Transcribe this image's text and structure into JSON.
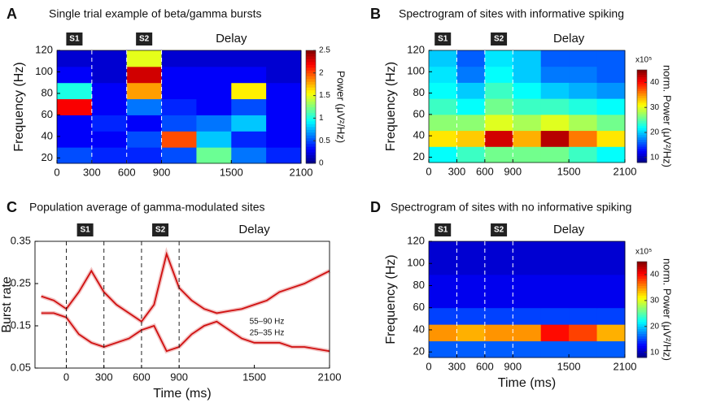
{
  "chart_data": [
    {
      "type": "heatmap",
      "panel_label": "A",
      "title": "Single trial example of beta/gamma bursts",
      "ylabel": "Frequency (Hz)",
      "x_bins": [
        0,
        300,
        600,
        900,
        1200,
        1500,
        1800,
        2100
      ],
      "y_bins": [
        15,
        30,
        45,
        60,
        75,
        90,
        105,
        120
      ],
      "values": [
        [
          0.5,
          0.4,
          0.4,
          0.5,
          1.2,
          0.6,
          0.4
        ],
        [
          0.3,
          0.3,
          0.5,
          2.0,
          0.8,
          0.4,
          0.3
        ],
        [
          0.3,
          0.4,
          0.3,
          0.5,
          0.6,
          0.8,
          0.3
        ],
        [
          2.2,
          0.3,
          0.6,
          0.4,
          0.3,
          0.5,
          0.3
        ],
        [
          1.0,
          0.3,
          1.8,
          0.3,
          0.3,
          1.6,
          0.3
        ],
        [
          0.3,
          0.2,
          2.3,
          0.3,
          0.3,
          0.3,
          0.2
        ],
        [
          0.2,
          0.2,
          1.5,
          0.2,
          0.2,
          0.2,
          0.2
        ]
      ],
      "xlim": [
        0,
        2100
      ],
      "xticks": [
        0,
        300,
        600,
        900,
        1500,
        2100
      ],
      "ylim": [
        15,
        120
      ],
      "yticks": [
        20,
        40,
        60,
        80,
        100,
        120
      ],
      "clim": [
        0,
        2.5
      ],
      "cticks": [
        0,
        0.5,
        1,
        1.5,
        2,
        2.5
      ],
      "colorbar_label": "Power (μV²/Hz)",
      "events": [
        300,
        600,
        900
      ],
      "epochs": [
        {
          "label": "S1",
          "start": 0,
          "end": 300,
          "badge": true
        },
        {
          "label": "S2",
          "start": 600,
          "end": 900,
          "badge": true
        },
        {
          "label": "Delay",
          "start": 900,
          "end": 2100,
          "badge": false
        }
      ]
    },
    {
      "type": "heatmap",
      "panel_label": "B",
      "title": "Spectrogram of sites with informative spiking",
      "ylabel": "Frequency (Hz)",
      "x_bins": [
        0,
        300,
        600,
        900,
        1200,
        1500,
        1800,
        2100
      ],
      "y_bins": [
        15,
        30,
        45,
        60,
        75,
        90,
        105,
        120
      ],
      "values": [
        [
          22,
          24,
          26,
          26,
          26,
          24,
          22
        ],
        [
          32,
          33,
          42,
          34,
          43,
          36,
          32
        ],
        [
          27,
          27,
          30,
          28,
          30,
          28,
          26
        ],
        [
          24,
          22,
          26,
          24,
          24,
          23,
          22
        ],
        [
          22,
          20,
          24,
          22,
          20,
          19,
          18
        ],
        [
          21,
          17,
          22,
          20,
          17,
          17,
          16
        ],
        [
          20,
          16,
          21,
          20,
          16,
          16,
          16
        ]
      ],
      "xlim": [
        0,
        2100
      ],
      "xticks": [
        0,
        300,
        600,
        900,
        1500,
        2100
      ],
      "ylim": [
        15,
        120
      ],
      "yticks": [
        20,
        40,
        60,
        80,
        100,
        120
      ],
      "clim": [
        8,
        45
      ],
      "cticks": [
        10,
        20,
        30,
        40
      ],
      "colorbar_multiplier": "x10⁵",
      "colorbar_label": "norm. Power (μV²/Hz)",
      "events": [
        300,
        600,
        900
      ],
      "epochs": [
        {
          "label": "S1",
          "start": 0,
          "end": 300,
          "badge": true
        },
        {
          "label": "S2",
          "start": 600,
          "end": 900,
          "badge": true
        },
        {
          "label": "Delay",
          "start": 900,
          "end": 2100,
          "badge": false
        }
      ]
    },
    {
      "type": "line",
      "panel_label": "C",
      "title": "Population average of gamma-modulated sites",
      "ylabel": "Burst  rate",
      "xlabel": "Time (ms)",
      "x": [
        -200,
        -100,
        0,
        100,
        200,
        300,
        400,
        500,
        600,
        700,
        800,
        900,
        1000,
        1100,
        1200,
        1300,
        1400,
        1500,
        1600,
        1700,
        1800,
        1900,
        2000,
        2100
      ],
      "series": [
        {
          "name": "55–90 Hz",
          "color": "#d01010",
          "values": [
            0.22,
            0.21,
            0.19,
            0.23,
            0.28,
            0.23,
            0.2,
            0.18,
            0.16,
            0.2,
            0.32,
            0.24,
            0.21,
            0.19,
            0.18,
            0.185,
            0.19,
            0.2,
            0.21,
            0.23,
            0.24,
            0.25,
            0.265,
            0.28
          ]
        },
        {
          "name": "25–35 Hz",
          "color": "#d01010",
          "values": [
            0.18,
            0.18,
            0.17,
            0.13,
            0.11,
            0.1,
            0.11,
            0.12,
            0.14,
            0.15,
            0.09,
            0.1,
            0.13,
            0.15,
            0.16,
            0.14,
            0.12,
            0.11,
            0.11,
            0.11,
            0.1,
            0.1,
            0.095,
            0.09
          ]
        }
      ],
      "xlim": [
        -250,
        2100
      ],
      "xticks": [
        0,
        300,
        600,
        900,
        1500,
        2100
      ],
      "ylim": [
        0.05,
        0.35
      ],
      "yticks": [
        0.05,
        0.15,
        0.25,
        0.35
      ],
      "events": [
        0,
        300,
        600,
        900
      ],
      "epochs": [
        {
          "label": "S1",
          "start": 0,
          "end": 300,
          "badge": true
        },
        {
          "label": "S2",
          "start": 600,
          "end": 900,
          "badge": true
        },
        {
          "label": "Delay",
          "start": 900,
          "end": 2100,
          "badge": false
        }
      ]
    },
    {
      "type": "heatmap",
      "panel_label": "D",
      "title": "Spectrogram of sites with no informative spiking",
      "ylabel": "Frequency (Hz)",
      "xlabel": "Time (ms)",
      "x_bins": [
        0,
        300,
        600,
        900,
        1200,
        1500,
        1800,
        2100
      ],
      "y_bins": [
        15,
        30,
        45,
        60,
        75,
        90,
        105,
        120
      ],
      "values": [
        [
          16,
          16,
          16,
          16,
          16,
          16,
          16
        ],
        [
          35,
          34,
          35,
          35,
          40,
          38,
          34
        ],
        [
          15,
          15,
          15,
          15,
          15,
          15,
          15
        ],
        [
          12,
          12,
          12,
          12,
          12,
          12,
          12
        ],
        [
          12,
          12,
          12,
          12,
          12,
          12,
          12
        ],
        [
          11,
          11,
          11,
          11,
          11,
          11,
          11
        ],
        [
          11,
          11,
          11,
          11,
          11,
          11,
          11
        ]
      ],
      "xlim": [
        0,
        2100
      ],
      "xticks": [
        0,
        300,
        600,
        900,
        1500,
        2100
      ],
      "ylim": [
        15,
        120
      ],
      "yticks": [
        20,
        40,
        60,
        80,
        100,
        120
      ],
      "clim": [
        8,
        45
      ],
      "cticks": [
        10,
        20,
        30,
        40
      ],
      "colorbar_multiplier": "x10⁵",
      "colorbar_label": "norm. Power (μV²/Hz)",
      "events": [
        300,
        600,
        900
      ],
      "epochs": [
        {
          "label": "S1",
          "start": 0,
          "end": 300,
          "badge": true
        },
        {
          "label": "S2",
          "start": 600,
          "end": 900,
          "badge": true
        },
        {
          "label": "Delay",
          "start": 900,
          "end": 2100,
          "badge": false
        }
      ]
    }
  ]
}
